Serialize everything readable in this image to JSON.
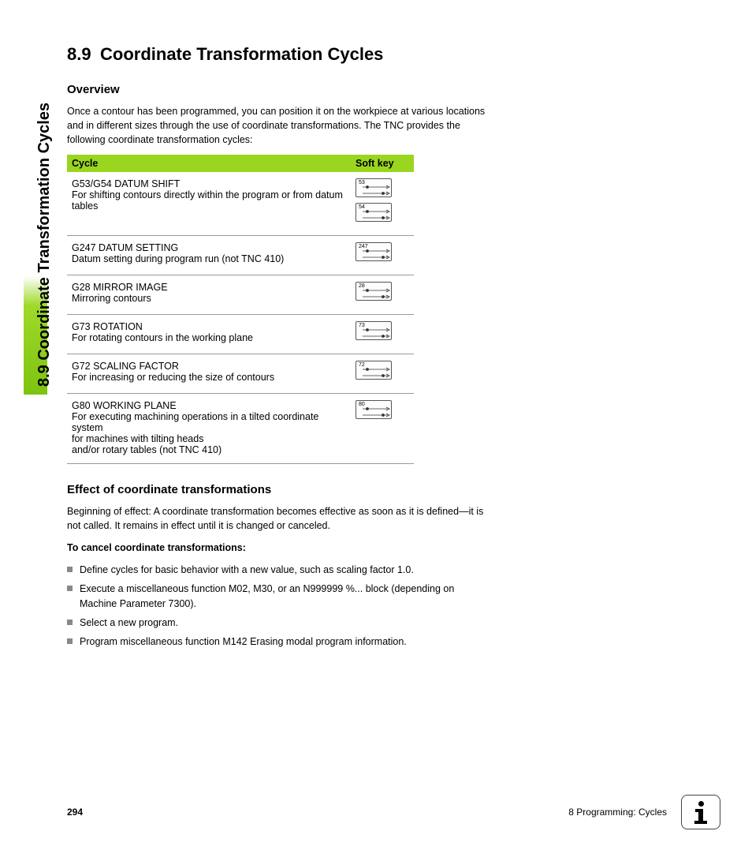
{
  "side_tab": {
    "text": "8.9 Coordinate Transformation Cycles"
  },
  "heading": {
    "number": "8.9",
    "title": "Coordinate Transformation Cycles"
  },
  "overview": {
    "title": "Overview",
    "para": "Once a contour has been programmed, you can position it on the workpiece at various locations and in different sizes through the use of coordinate transformations. The TNC provides the following coordinate transformation cycles:"
  },
  "table": {
    "header_cycle": "Cycle",
    "header_softkey": "Soft key",
    "header_bg": "#9ad61f",
    "rows": [
      {
        "title": "G53/G54 DATUM SHIFT",
        "desc": "For shifting contours directly within the program or from datum tables",
        "keys": [
          "53",
          "54"
        ]
      },
      {
        "title": "G247 DATUM SETTING",
        "desc": "Datum setting during program run (not TNC 410)",
        "keys": [
          "247"
        ]
      },
      {
        "title": "G28 MIRROR IMAGE",
        "desc": "Mirroring contours",
        "keys": [
          "28"
        ]
      },
      {
        "title": "G73 ROTATION",
        "desc": "For rotating contours in the working plane",
        "keys": [
          "73"
        ]
      },
      {
        "title": "G72 SCALING FACTOR",
        "desc": "For increasing or reducing the size of contours",
        "keys": [
          "72"
        ]
      },
      {
        "title": "G80 WORKING PLANE",
        "desc": "For executing machining operations in a tilted coordinate system\nfor machines with tilting heads\nand/or rotary tables (not TNC 410)",
        "keys": [
          "80"
        ]
      }
    ]
  },
  "effect": {
    "title": "Effect of coordinate transformations",
    "para": "Beginning of effect: A coordinate transformation becomes effective as soon as it is defined—it is not called. It remains in effect until it is changed or canceled.",
    "cancel_title": "To cancel coordinate transformations:",
    "bullets": [
      "Define cycles for basic behavior with a new value, such as scaling factor 1.0.",
      "Execute a miscellaneous function M02, M30, or an N999999 %... block (depending on Machine Parameter 7300).",
      "Select a new program.",
      "Program miscellaneous function M142 Erasing modal program information."
    ]
  },
  "footer": {
    "page": "294",
    "chapter": "8 Programming: Cycles"
  },
  "colors": {
    "accent": "#9ad61f",
    "text": "#000000",
    "bullet": "#888888"
  }
}
